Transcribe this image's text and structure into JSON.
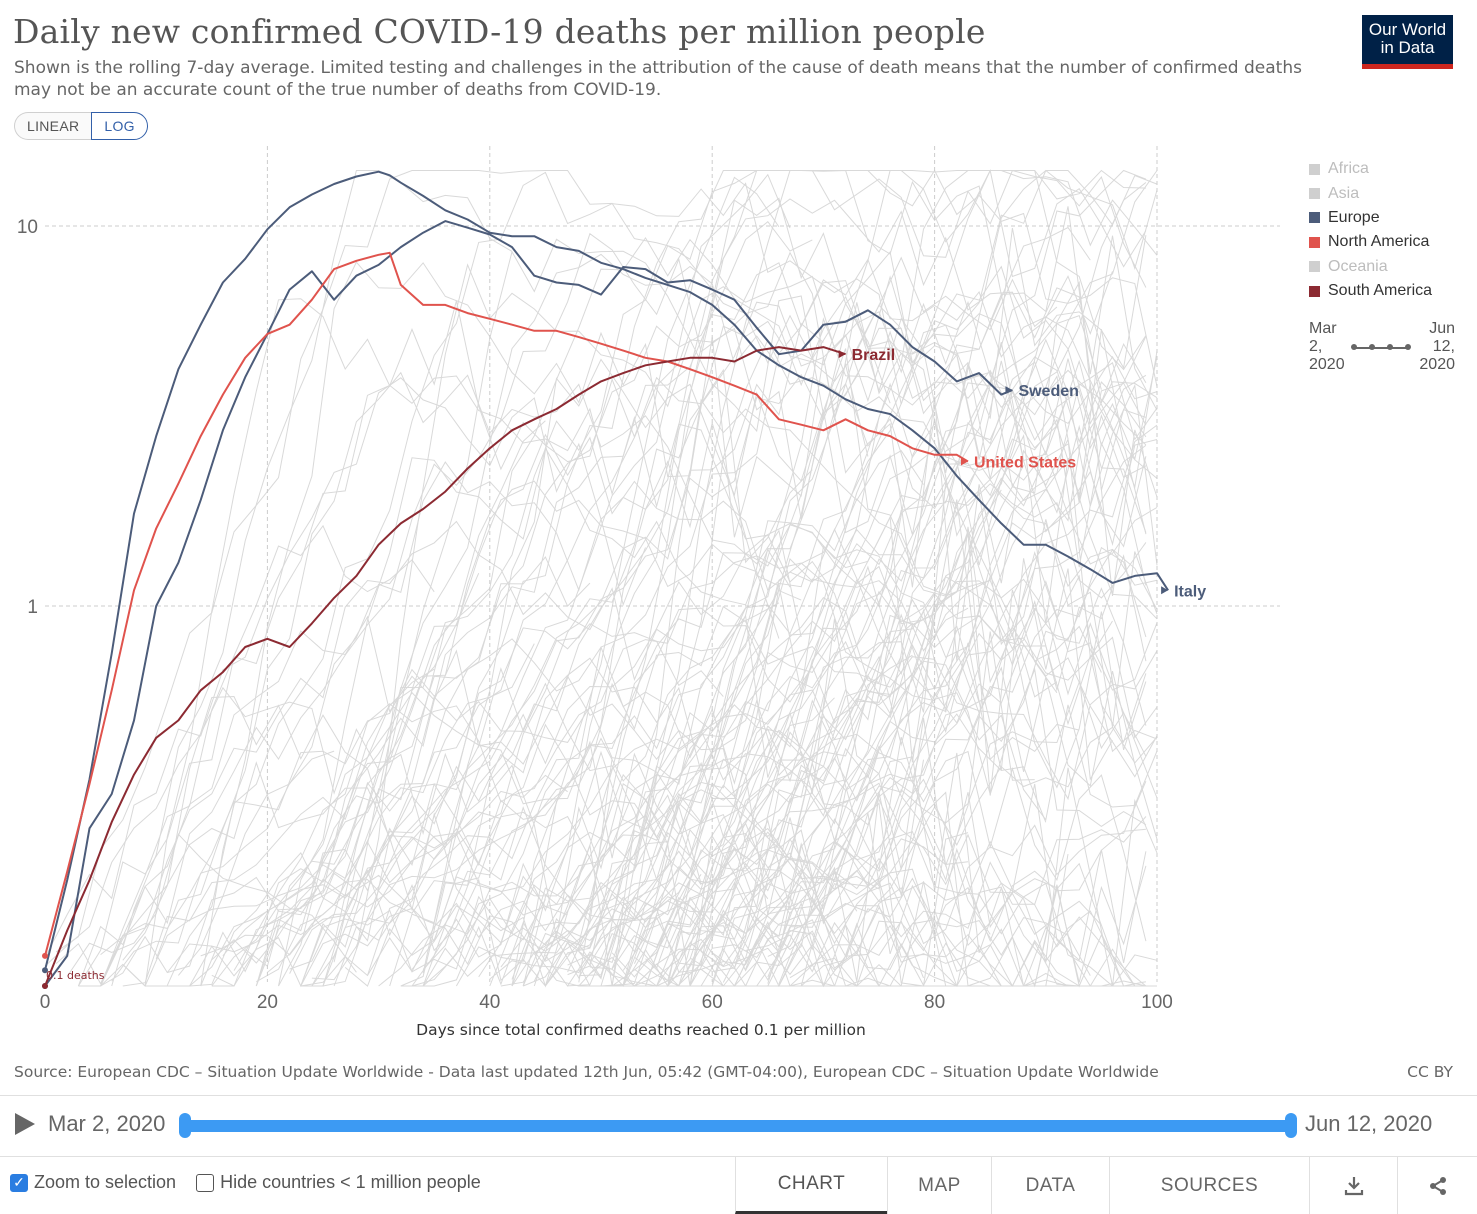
{
  "header": {
    "title": "Daily new confirmed COVID-19 deaths per million people",
    "subtitle": "Shown is the rolling 7-day average. Limited testing and challenges in the attribution of the cause of death means that the number of confirmed deaths may not be an accurate count of the true number of deaths from COVID-19.",
    "logo_line1": "Our World",
    "logo_line2": "in Data"
  },
  "scale_toggle": {
    "linear_label": "LINEAR",
    "log_label": "LOG",
    "active": "LOG"
  },
  "legend": [
    {
      "label": "Africa",
      "color": "#cfcfcf",
      "text_color": "#bdbdbd"
    },
    {
      "label": "Asia",
      "color": "#cfcfcf",
      "text_color": "#bdbdbd"
    },
    {
      "label": "Europe",
      "color": "#4c5c7a",
      "text_color": "#333333"
    },
    {
      "label": "North America",
      "color": "#e0534d",
      "text_color": "#333333"
    },
    {
      "label": "Oceania",
      "color": "#cfcfcf",
      "text_color": "#bdbdbd"
    },
    {
      "label": "South America",
      "color": "#8c2a32",
      "text_color": "#333333"
    }
  ],
  "time_mini": {
    "start_line1": "Mar",
    "start_line2": "2,",
    "start_line3": "2020",
    "end_line1": "Jun",
    "end_line2": "12,",
    "end_line3": "2020"
  },
  "chart_data": {
    "type": "line",
    "title": "Daily new confirmed COVID-19 deaths per million people",
    "xlabel": "Days since total confirmed deaths reached 0.1 per million",
    "ylabel": "",
    "y_scale": "log",
    "xlim": [
      0,
      110
    ],
    "ylim": [
      0.1,
      13
    ],
    "x_ticks": [
      "0",
      "20",
      "40",
      "60",
      "80",
      "100"
    ],
    "y_ticks": [
      "1",
      "10"
    ],
    "annotation": "0.1 deaths",
    "grid": true,
    "series": [
      {
        "name": "Italy",
        "color": "#4c5c7a",
        "x": [
          0,
          2,
          4,
          6,
          8,
          10,
          12,
          14,
          16,
          18,
          20,
          22,
          24,
          26,
          28,
          30,
          31,
          32,
          34,
          36,
          38,
          40,
          42,
          44,
          46,
          48,
          50,
          52,
          54,
          56,
          58,
          60,
          62,
          64,
          66,
          68,
          70,
          72,
          74,
          76,
          78,
          80,
          82,
          84,
          86,
          88,
          90,
          92,
          94,
          96,
          98,
          100,
          101
        ],
        "y": [
          0.11,
          0.19,
          0.35,
          0.75,
          1.75,
          2.8,
          4.2,
          5.5,
          7.1,
          8.2,
          9.8,
          11.2,
          12.1,
          12.9,
          13.5,
          13.9,
          13.6,
          13.0,
          12.0,
          11.0,
          10.4,
          9.6,
          9.4,
          9.4,
          8.8,
          8.6,
          8.0,
          7.7,
          7.3,
          7.0,
          6.7,
          6.2,
          5.5,
          4.7,
          4.3,
          4.0,
          3.8,
          3.5,
          3.3,
          3.2,
          2.9,
          2.6,
          2.2,
          1.9,
          1.65,
          1.45,
          1.45,
          1.35,
          1.25,
          1.15,
          1.2,
          1.22,
          1.1
        ]
      },
      {
        "name": "Sweden",
        "color": "#4c5c7a",
        "x": [
          0,
          2,
          4,
          6,
          8,
          10,
          12,
          14,
          16,
          18,
          20,
          22,
          24,
          26,
          28,
          30,
          32,
          34,
          36,
          38,
          40,
          42,
          44,
          46,
          48,
          50,
          52,
          54,
          56,
          58,
          60,
          62,
          64,
          66,
          68,
          70,
          72,
          74,
          76,
          78,
          80,
          82,
          84,
          86,
          87
        ],
        "y": [
          0.1,
          0.12,
          0.26,
          0.32,
          0.5,
          1.0,
          1.3,
          1.9,
          2.9,
          4.0,
          5.2,
          6.8,
          7.6,
          6.4,
          7.4,
          7.9,
          8.8,
          9.6,
          10.3,
          9.9,
          9.5,
          8.8,
          7.4,
          7.1,
          7.0,
          6.6,
          7.8,
          7.7,
          7.1,
          7.2,
          6.8,
          6.4,
          5.4,
          4.6,
          4.7,
          5.5,
          5.6,
          6.0,
          5.5,
          4.8,
          4.4,
          3.9,
          4.1,
          3.6,
          3.7
        ]
      },
      {
        "name": "United States",
        "color": "#e0534d",
        "x": [
          0,
          2,
          4,
          6,
          8,
          10,
          12,
          14,
          16,
          18,
          20,
          22,
          24,
          26,
          28,
          30,
          31,
          32,
          34,
          36,
          38,
          40,
          42,
          44,
          46,
          48,
          50,
          52,
          54,
          56,
          58,
          60,
          62,
          64,
          66,
          68,
          70,
          72,
          74,
          76,
          78,
          80,
          82,
          83
        ],
        "y": [
          0.12,
          0.2,
          0.34,
          0.6,
          1.1,
          1.6,
          2.1,
          2.8,
          3.6,
          4.5,
          5.2,
          5.5,
          6.4,
          7.7,
          8.1,
          8.4,
          8.5,
          7.0,
          6.2,
          6.2,
          5.9,
          5.7,
          5.5,
          5.3,
          5.3,
          5.1,
          4.9,
          4.7,
          4.5,
          4.4,
          4.2,
          4.0,
          3.8,
          3.6,
          3.1,
          3.0,
          2.9,
          3.1,
          2.9,
          2.8,
          2.6,
          2.5,
          2.5,
          2.4
        ]
      },
      {
        "name": "Brazil",
        "color": "#8c2a32",
        "x": [
          0,
          2,
          4,
          6,
          8,
          10,
          12,
          14,
          16,
          18,
          20,
          22,
          24,
          26,
          28,
          30,
          32,
          34,
          36,
          38,
          40,
          42,
          44,
          46,
          48,
          50,
          52,
          54,
          56,
          58,
          60,
          62,
          64,
          66,
          68,
          70,
          72
        ],
        "y": [
          0.1,
          0.14,
          0.19,
          0.27,
          0.36,
          0.45,
          0.5,
          0.6,
          0.67,
          0.78,
          0.82,
          0.78,
          0.9,
          1.05,
          1.2,
          1.45,
          1.65,
          1.8,
          2.0,
          2.3,
          2.6,
          2.9,
          3.1,
          3.3,
          3.6,
          3.9,
          4.1,
          4.3,
          4.4,
          4.5,
          4.5,
          4.4,
          4.7,
          4.8,
          4.7,
          4.8,
          4.6
        ]
      }
    ],
    "line_labels": [
      "Brazil",
      "Sweden",
      "United States",
      "Italy"
    ]
  },
  "footer": {
    "source": "Source: European CDC – Situation Update Worldwide - Data last updated 12th Jun, 05:42 (GMT-04:00), European CDC – Situation Update Worldwide",
    "license": "CC BY"
  },
  "timeline": {
    "start": "Mar 2, 2020",
    "end": "Jun 12, 2020"
  },
  "controls": {
    "zoom_label": "Zoom to selection",
    "zoom_checked": true,
    "hide_label": "Hide countries < 1 million people",
    "hide_checked": false
  },
  "tabs": [
    "CHART",
    "MAP",
    "DATA",
    "SOURCES"
  ],
  "active_tab": "CHART",
  "icons": {
    "download": "download-icon",
    "share": "share-icon",
    "play": "play-icon"
  }
}
